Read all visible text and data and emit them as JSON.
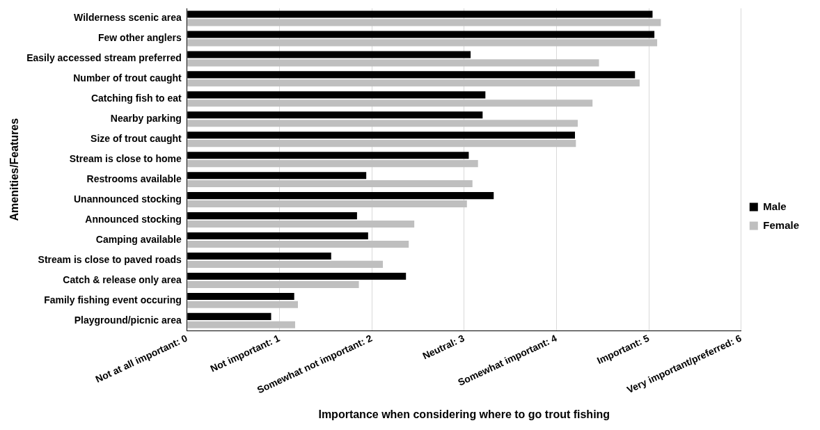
{
  "chart_data": {
    "type": "bar",
    "orientation": "horizontal",
    "xlabel": "Importance when considering where to go trout fishing",
    "ylabel": "Amenities/Features",
    "categories": [
      "Wilderness scenic area",
      "Few other anglers",
      "Easily accessed stream preferred",
      "Number of trout caught",
      "Catching fish to eat",
      "Nearby parking",
      "Size of trout caught",
      "Stream is close to home",
      "Restrooms available",
      "Unannounced stocking",
      "Announced stocking",
      "Camping available",
      "Stream is close to paved roads",
      "Catch & release only area",
      "Family fishing event occuring",
      "Playground/picnic area"
    ],
    "series": [
      {
        "name": "Male",
        "color": "#000000",
        "values": [
          5.04,
          5.06,
          3.07,
          4.85,
          3.23,
          3.2,
          4.2,
          3.05,
          1.94,
          3.32,
          1.84,
          1.96,
          1.56,
          2.37,
          1.16,
          0.91
        ]
      },
      {
        "name": "Female",
        "color": "#bfbfbf",
        "values": [
          5.13,
          5.09,
          4.46,
          4.9,
          4.39,
          4.23,
          4.21,
          3.15,
          3.09,
          3.03,
          2.46,
          2.4,
          2.12,
          1.86,
          1.2,
          1.17
        ]
      }
    ],
    "xlim": [
      0,
      6
    ],
    "xticks": [
      {
        "value": 0,
        "label": "Not at all important: 0"
      },
      {
        "value": 1,
        "label": "Not important: 1"
      },
      {
        "value": 2,
        "label": "Somewhat not important: 2"
      },
      {
        "value": 3,
        "label": "Neutral: 3"
      },
      {
        "value": 4,
        "label": "Somewhat important: 4"
      },
      {
        "value": 5,
        "label": "Important: 5"
      },
      {
        "value": 6,
        "label": "Very important/preferred: 6"
      }
    ],
    "grid": "x",
    "legend": "right"
  }
}
